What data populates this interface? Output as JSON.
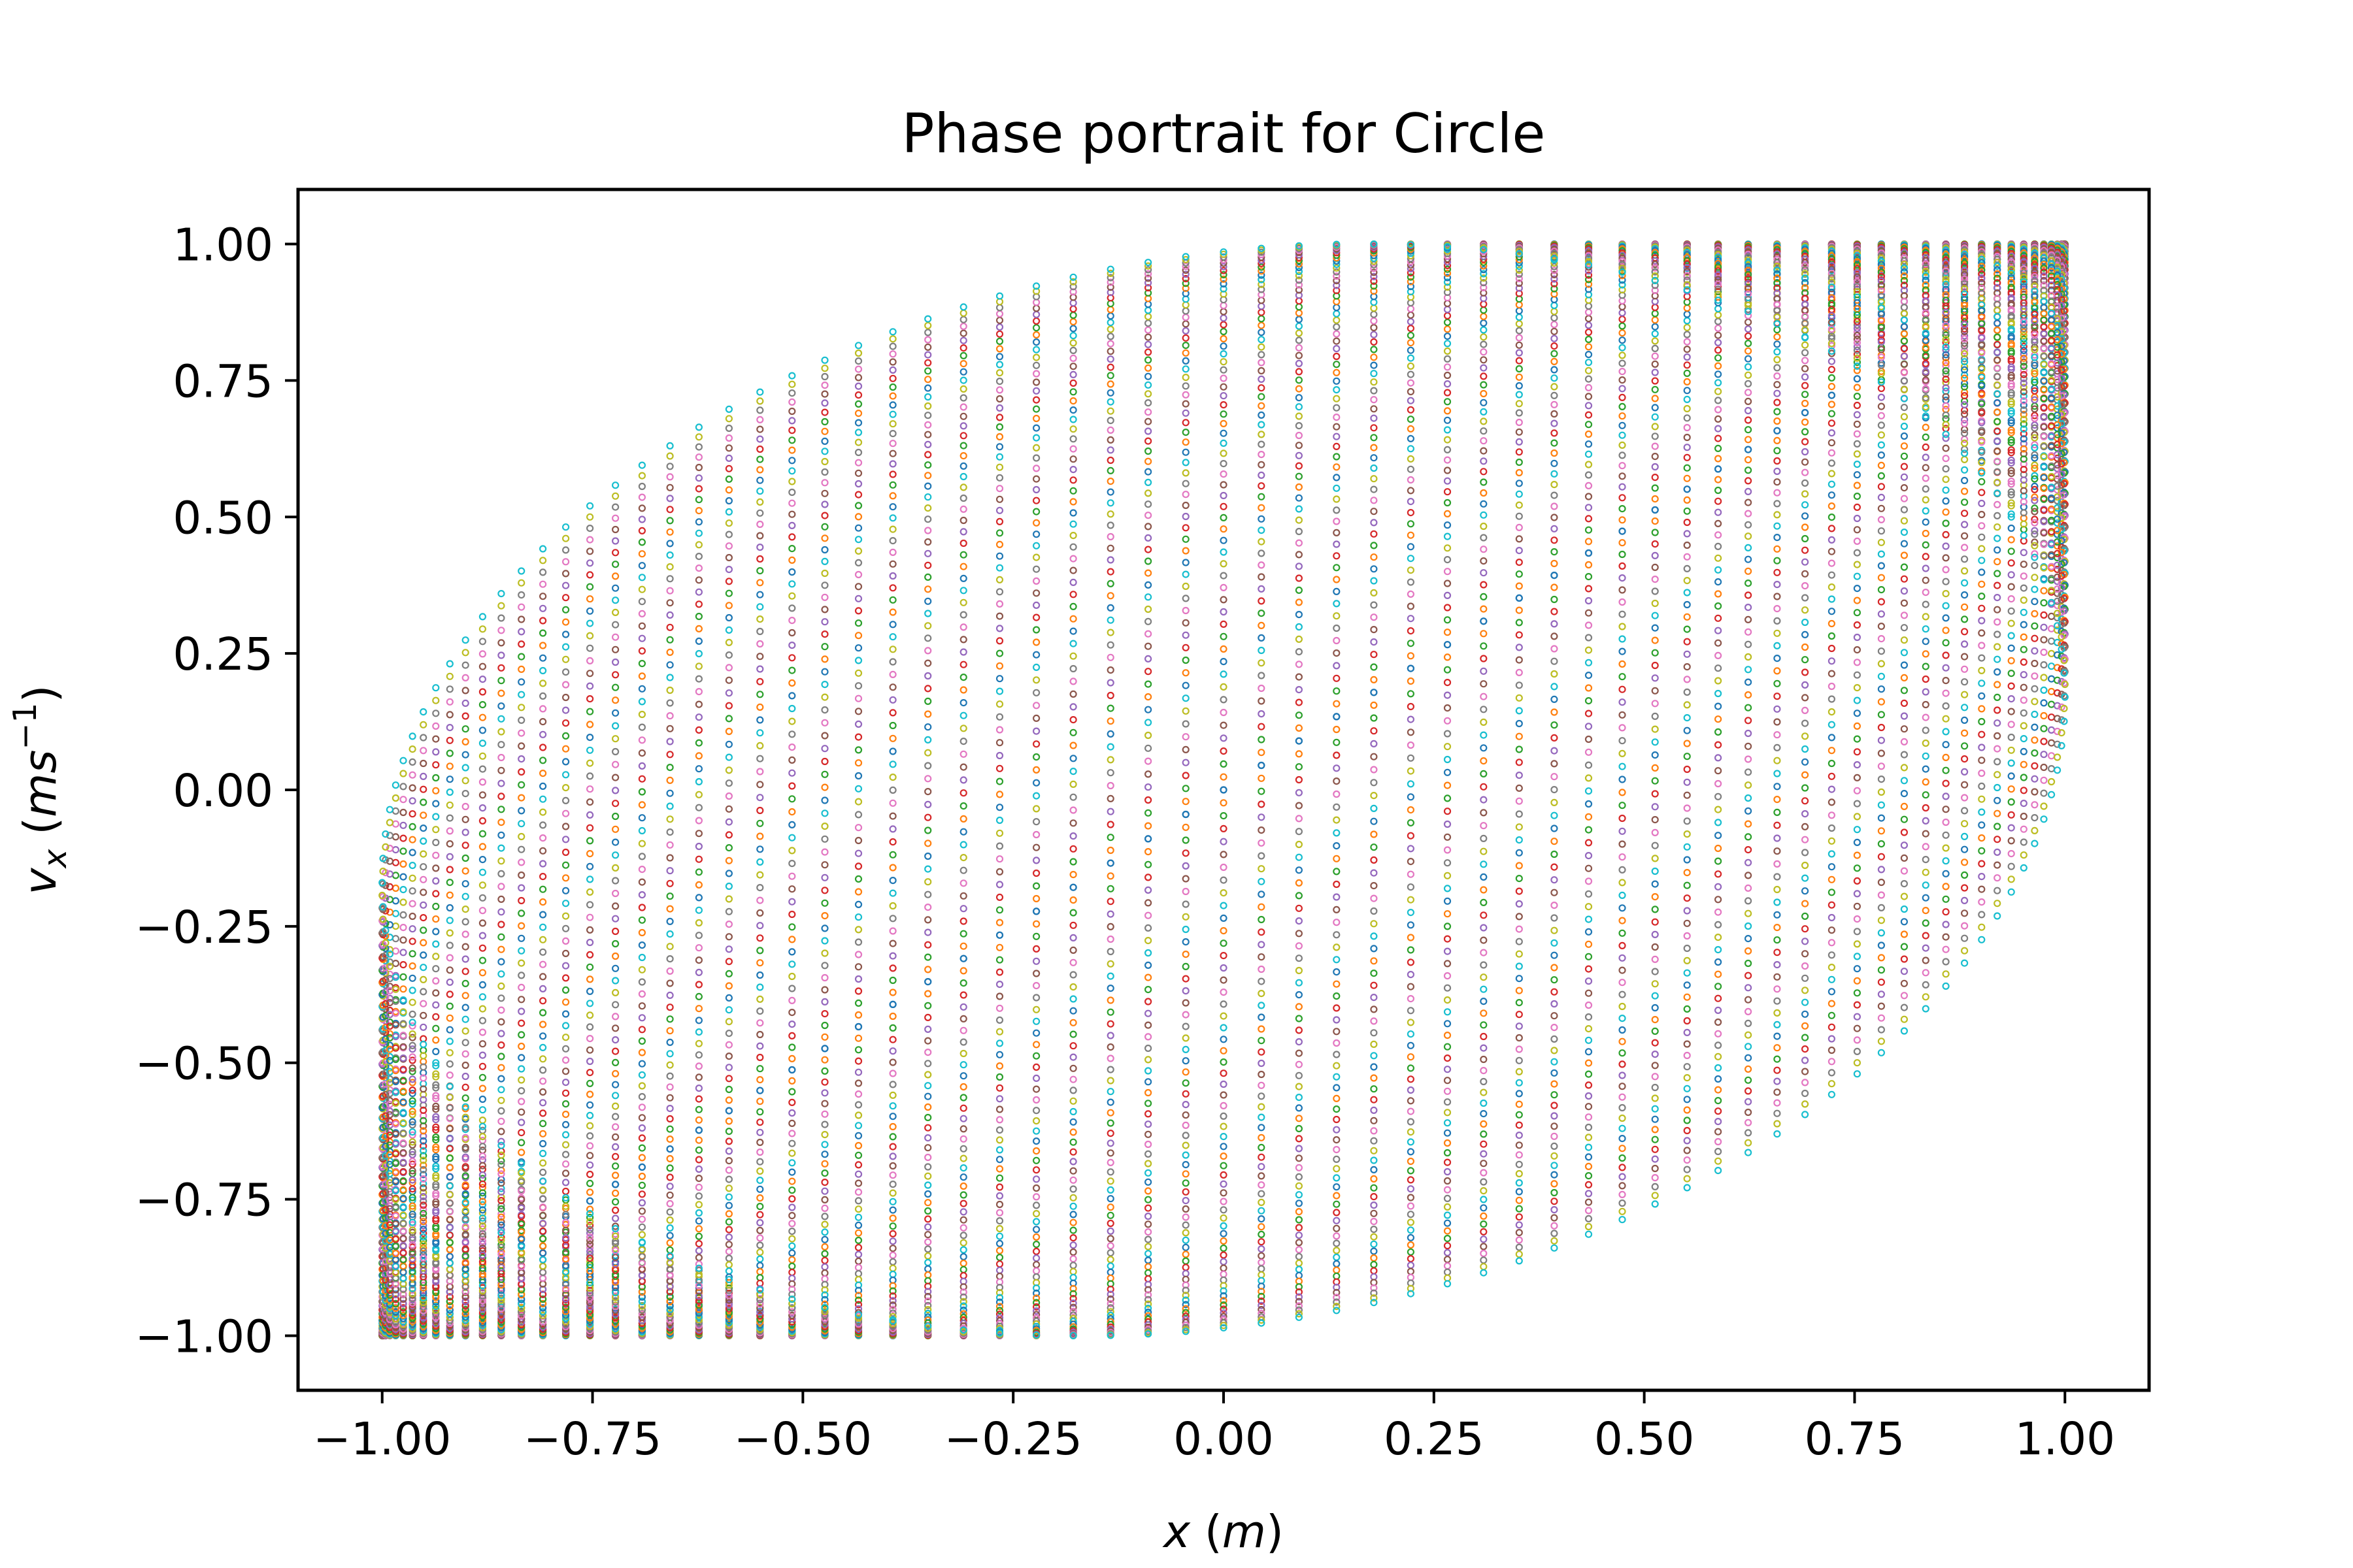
{
  "chart_data": {
    "type": "scatter",
    "title": "Phase portrait for Circle",
    "xlabel": {
      "var": "x",
      "unit": "m"
    },
    "ylabel": {
      "var": "v",
      "sub": "x",
      "unit_base": "ms",
      "unit_exp": "−1"
    },
    "xlim": [
      -1.1,
      1.1
    ],
    "ylim": [
      -1.1,
      1.1
    ],
    "x_ticks": [
      -1.0,
      -0.75,
      -0.5,
      -0.25,
      0.0,
      0.25,
      0.5,
      0.75,
      1.0
    ],
    "x_tick_labels": [
      "−1.00",
      "−0.75",
      "−0.50",
      "−0.25",
      "0.00",
      "0.25",
      "0.50",
      "0.75",
      "1.00"
    ],
    "y_ticks": [
      -1.0,
      -0.75,
      -0.5,
      -0.25,
      0.0,
      0.25,
      0.5,
      0.75,
      1.0
    ],
    "y_tick_labels": [
      "−1.00",
      "−0.75",
      "−0.50",
      "−0.25",
      "0.00",
      "0.25",
      "0.50",
      "0.75",
      "1.00"
    ],
    "grid": false,
    "legend": "none",
    "marker": "small open circles",
    "pattern": "Lissajous trajectories x = cos(t), v_x = cos(t - phi) for many phase offsets phi from 0 to about 1.4 rad; each offset drawn in a cycling color",
    "phase_offsets": {
      "min": 0.0,
      "max": 1.4,
      "count": 60
    },
    "points_per_orbit": 140,
    "colors": [
      "#1f77b4",
      "#ff7f0e",
      "#2ca02c",
      "#d62728",
      "#9467bd",
      "#8c564b",
      "#e377c2",
      "#7f7f7f",
      "#bcbd22",
      "#17becf"
    ]
  }
}
